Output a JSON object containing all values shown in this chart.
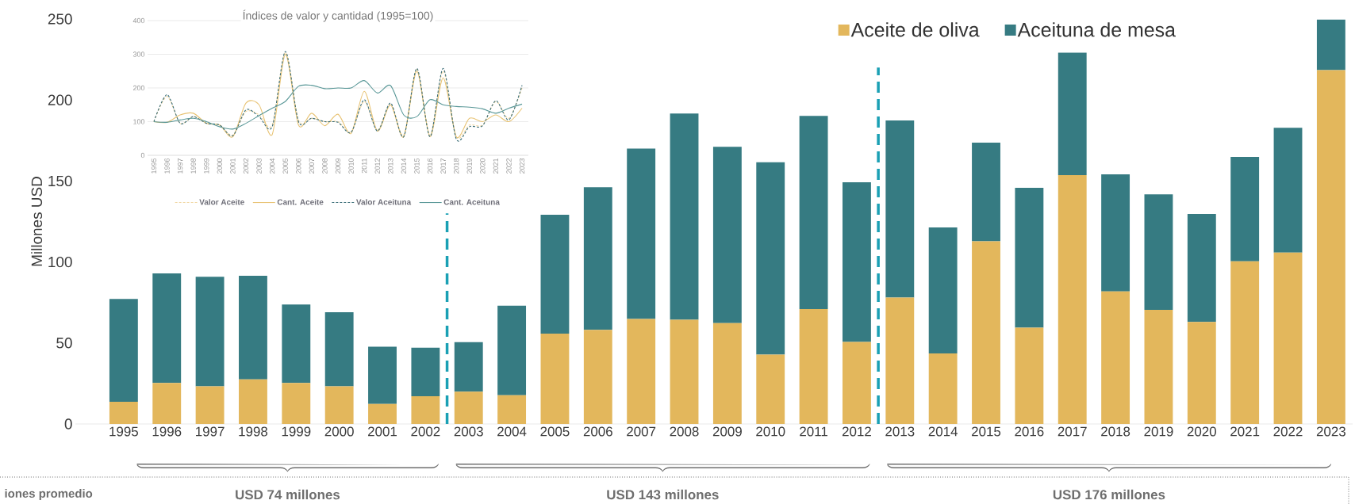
{
  "chart_data": [
    {
      "type": "bar",
      "stacked": true,
      "ylabel": "Millones USD",
      "x": [
        1995,
        1996,
        1997,
        1998,
        1999,
        2000,
        2001,
        2002,
        2003,
        2004,
        2005,
        2006,
        2007,
        2008,
        2009,
        2010,
        2011,
        2012,
        2013,
        2014,
        2015,
        2016,
        2017,
        2018,
        2019,
        2020,
        2021,
        2022,
        2023
      ],
      "xlim": [
        1993.88,
        2023.5
      ],
      "xticks": [
        1995,
        1996,
        1997,
        1998,
        1999,
        2000,
        2001,
        2002,
        2003,
        2004,
        2005,
        2006,
        2007,
        2008,
        2009,
        2010,
        2011,
        2012,
        2013,
        2014,
        2015,
        2016,
        2017,
        2018,
        2019,
        2020,
        2021,
        2022,
        2023
      ],
      "ref_lines": [
        {
          "axis": "x",
          "value": 2002.5,
          "color": "#1aa0b4",
          "line_style": "dashed"
        },
        {
          "axis": "x",
          "value": 2012.5,
          "color": "#1aa0b4",
          "line_style": "dashed"
        }
      ],
      "series": [
        {
          "name": "Aceite de oliva",
          "color": "#e3b75c",
          "values": [
            13.7,
            25.3,
            23.3,
            27.5,
            25.3,
            23.3,
            12.3,
            17.1,
            19.9,
            17.7,
            55.8,
            58.1,
            64.8,
            64.3,
            62.2,
            42.8,
            71.0,
            50.6,
            78.0,
            43.6,
            112.8,
            59.4,
            153.6,
            81.8,
            70.5,
            63.0,
            100.4,
            105.8,
            218.4
          ]
        },
        {
          "name": "Aceituna de mesa",
          "color": "#367b82",
          "values": [
            63.5,
            67.6,
            67.6,
            64.0,
            48.5,
            45.7,
            35.4,
            30.0,
            30.6,
            55.3,
            73.3,
            88.1,
            105.2,
            127.3,
            108.9,
            118.8,
            119.2,
            98.6,
            109.4,
            77.7,
            60.9,
            86.4,
            75.6,
            72.3,
            71.2,
            66.6,
            64.5,
            77.0,
            31.2
          ]
        }
      ],
      "ylim": [
        0,
        250
      ],
      "yticks": [
        0,
        50,
        100,
        150,
        200,
        250
      ],
      "legend": "top",
      "annotations": [
        "iones promedio",
        "USD 74 millones",
        "USD 143 millones",
        "USD 176 millones"
      ]
    },
    {
      "type": "line",
      "title": "Índices de valor y cantidad (1995=100)",
      "categories": [
        "1995",
        "1996",
        "1997",
        "1998",
        "1999",
        "2000",
        "2001",
        "2002",
        "2003",
        "2004",
        "2005",
        "2006",
        "2007",
        "2008",
        "2009",
        "2010",
        "2011",
        "2012",
        "2013",
        "2014",
        "2015",
        "2016",
        "2017",
        "2018",
        "2019",
        "2020",
        "2021",
        "2022",
        "2023"
      ],
      "series": [
        {
          "name": "Valor Aceite",
          "color": "#f0d6a0",
          "line_style": "dashed",
          "values": [
            100,
            175,
            95,
            115,
            95,
            90,
            60,
            130,
            120,
            90,
            305,
            105,
            110,
            100,
            100,
            70,
            160,
            75,
            150,
            60,
            255,
            60,
            250,
            55,
            90,
            90,
            160,
            110,
            200
          ]
        },
        {
          "name": "Cant. Aceite",
          "color": "#e8c374",
          "line_style": "solid",
          "values": [
            100,
            98,
            120,
            125,
            95,
            90,
            55,
            155,
            150,
            62,
            300,
            90,
            125,
            88,
            122,
            65,
            190,
            72,
            150,
            55,
            250,
            55,
            230,
            55,
            110,
            100,
            120,
            100,
            140
          ]
        },
        {
          "name": "Valor Aceituna",
          "color": "#3b6e78",
          "line_style": "dashed",
          "values": [
            100,
            180,
            95,
            115,
            95,
            90,
            58,
            135,
            115,
            85,
            308,
            100,
            110,
            100,
            98,
            68,
            165,
            72,
            155,
            55,
            258,
            55,
            258,
            48,
            85,
            88,
            162,
            105,
            208
          ]
        },
        {
          "name": "Cant. Aceituna",
          "color": "#5a9898",
          "line_style": "solid",
          "values": [
            100,
            98,
            105,
            110,
            100,
            85,
            78,
            95,
            118,
            140,
            160,
            205,
            208,
            198,
            200,
            200,
            222,
            185,
            207,
            120,
            115,
            165,
            150,
            145,
            143,
            138,
            125,
            140,
            152
          ]
        }
      ],
      "ylim": [
        0,
        400
      ],
      "yticks": [
        0,
        100,
        200,
        300,
        400
      ],
      "grid": "y",
      "legend": "bottom"
    }
  ]
}
